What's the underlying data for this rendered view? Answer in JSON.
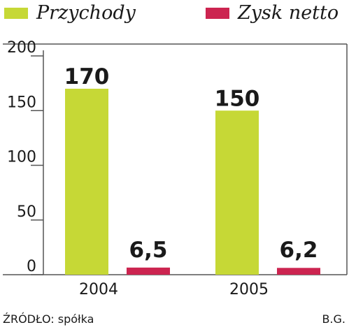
{
  "chart_data": {
    "type": "bar",
    "categories": [
      "2004",
      "2005"
    ],
    "series": [
      {
        "name": "Przychody",
        "values": [
          170,
          150
        ],
        "labels": [
          "170",
          "150"
        ],
        "color": "#c6d836"
      },
      {
        "name": "Zysk netto",
        "values": [
          6.5,
          6.2
        ],
        "labels": [
          "6,5",
          "6,2"
        ],
        "color": "#cc2450"
      }
    ],
    "ylim": [
      0,
      200
    ],
    "yticks": [
      0,
      50,
      100,
      150,
      200
    ],
    "grid": false,
    "legend_position": "top"
  },
  "footer": {
    "source": "ŹRÓDŁO: spółka",
    "author": "B.G."
  }
}
